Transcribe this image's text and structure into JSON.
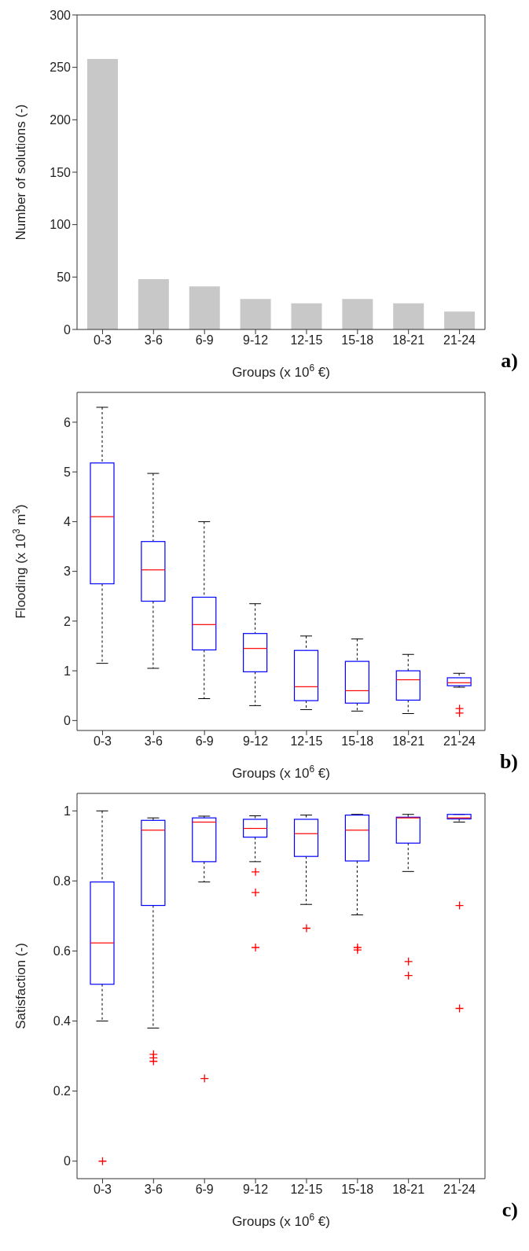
{
  "chart_data": [
    {
      "type": "bar",
      "categories": [
        "0-3",
        "3-6",
        "6-9",
        "9-12",
        "12-15",
        "15-18",
        "18-21",
        "21-24"
      ],
      "values": [
        258,
        48,
        41,
        29,
        25,
        29,
        25,
        17
      ],
      "color": "#c8c8c8",
      "xlabel": "Groups (x 10$^{6}$ €)",
      "ylabel": "Number of solutions (-)",
      "ylim": [
        0,
        300
      ],
      "yticks": [
        0,
        50,
        100,
        150,
        200,
        250,
        300
      ],
      "annotations": [
        "a)"
      ]
    },
    {
      "type": "box",
      "categories": [
        "0-3",
        "3-6",
        "6-9",
        "9-12",
        "12-15",
        "15-18",
        "18-21",
        "21-24"
      ],
      "xlabel": "Groups (x 10$^{6}$ €)",
      "ylabel": "Flooding (x 10$^{3}$ m$^{3}$)",
      "ylim": [
        -0.2,
        6.6
      ],
      "yticks": [
        0,
        1,
        2,
        3,
        4,
        5,
        6
      ],
      "annotations": [
        "b)"
      ],
      "series": [
        {
          "color": "#0000ff",
          "boxes": [
            {
              "low": 1.15,
              "q1": 2.75,
              "median": 4.1,
              "q3": 5.18,
              "high": 6.3
            },
            {
              "low": 1.05,
              "q1": 2.4,
              "median": 3.03,
              "q3": 3.6,
              "high": 4.97
            },
            {
              "low": 0.44,
              "q1": 1.42,
              "median": 1.93,
              "q3": 2.48,
              "high": 4.0
            },
            {
              "low": 0.3,
              "q1": 0.98,
              "median": 1.45,
              "q3": 1.75,
              "high": 2.35
            },
            {
              "low": 0.22,
              "q1": 0.4,
              "median": 0.68,
              "q3": 1.41,
              "high": 1.7
            },
            {
              "low": 0.19,
              "q1": 0.35,
              "median": 0.6,
              "q3": 1.19,
              "high": 1.64
            },
            {
              "low": 0.14,
              "q1": 0.41,
              "median": 0.82,
              "q3": 1.0,
              "high": 1.33
            },
            {
              "low": 0.67,
              "q1": 0.7,
              "median": 0.76,
              "q3": 0.86,
              "high": 0.95,
              "outliers": [
                0.24,
                0.15
              ]
            }
          ]
        }
      ]
    },
    {
      "type": "box",
      "categories": [
        "0-3",
        "3-6",
        "6-9",
        "9-12",
        "12-15",
        "15-18",
        "18-21",
        "21-24"
      ],
      "xlabel": "Groups (x 10$^{6}$ €)",
      "ylabel": "Satisfaction (-)",
      "ylim": [
        -0.05,
        1.05
      ],
      "yticks": [
        0,
        0.2,
        0.4,
        0.6,
        0.8,
        1
      ],
      "annotations": [
        "c)"
      ],
      "series": [
        {
          "color": "#0000ff",
          "boxes": [
            {
              "low": 0.4,
              "q1": 0.505,
              "median": 0.623,
              "q3": 0.797,
              "high": 1.0,
              "outliers": [
                0
              ]
            },
            {
              "low": 0.38,
              "q1": 0.73,
              "median": 0.945,
              "q3": 0.973,
              "high": 0.98,
              "outliers": [
                0.305,
                0.295,
                0.285
              ]
            },
            {
              "low": 0.797,
              "q1": 0.855,
              "median": 0.968,
              "q3": 0.98,
              "high": 0.985,
              "outliers": [
                0.236
              ]
            },
            {
              "low": 0.855,
              "q1": 0.925,
              "median": 0.95,
              "q3": 0.976,
              "high": 0.986,
              "outliers": [
                0.826,
                0.767,
                0.61
              ]
            },
            {
              "low": 0.733,
              "q1": 0.87,
              "median": 0.935,
              "q3": 0.976,
              "high": 0.988,
              "outliers": [
                0.665
              ]
            },
            {
              "low": 0.703,
              "q1": 0.857,
              "median": 0.945,
              "q3": 0.988,
              "high": 0.99,
              "outliers": [
                0.61,
                0.603
              ]
            },
            {
              "low": 0.827,
              "q1": 0.908,
              "median": 0.98,
              "q3": 0.982,
              "high": 0.99,
              "outliers": [
                0.57,
                0.53
              ]
            },
            {
              "low": 0.968,
              "q1": 0.977,
              "median": 0.98,
              "q3": 0.99,
              "high": 0.99,
              "outliers": [
                0.73,
                0.436
              ]
            }
          ]
        }
      ]
    }
  ]
}
